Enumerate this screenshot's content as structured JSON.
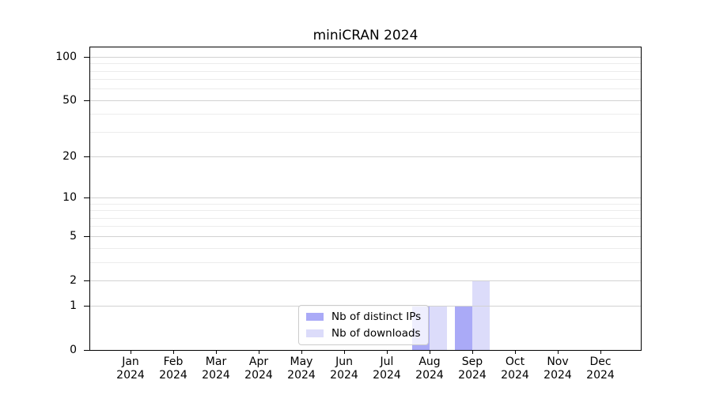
{
  "figure": {
    "background": "#ffffff"
  },
  "chart_data": {
    "type": "bar",
    "title": "miniCRAN 2024",
    "xlabel": "",
    "ylabel": "",
    "categories": [
      {
        "label": "Jan",
        "sublabel": "2024"
      },
      {
        "label": "Feb",
        "sublabel": "2024"
      },
      {
        "label": "Mar",
        "sublabel": "2024"
      },
      {
        "label": "Apr",
        "sublabel": "2024"
      },
      {
        "label": "May",
        "sublabel": "2024"
      },
      {
        "label": "Jun",
        "sublabel": "2024"
      },
      {
        "label": "Jul",
        "sublabel": "2024"
      },
      {
        "label": "Aug",
        "sublabel": "2024"
      },
      {
        "label": "Sep",
        "sublabel": "2024"
      },
      {
        "label": "Oct",
        "sublabel": "2024"
      },
      {
        "label": "Nov",
        "sublabel": "2024"
      },
      {
        "label": "Dec",
        "sublabel": "2024"
      }
    ],
    "series": [
      {
        "name": "Nb of distinct IPs",
        "color": "#aaaaf7",
        "values": [
          0,
          0,
          0,
          0,
          0,
          0,
          0,
          1,
          1,
          0,
          0,
          0
        ]
      },
      {
        "name": "Nb of downloads",
        "color": "#dcdcfa",
        "values": [
          0,
          0,
          0,
          0,
          0,
          0,
          0,
          1,
          2,
          0,
          0,
          0
        ]
      }
    ],
    "y_axis": {
      "scale": "log1p",
      "major_ticks": [
        0,
        1,
        2,
        5,
        10,
        20,
        50,
        100
      ],
      "minor_gridlines": [
        3,
        4,
        6,
        7,
        8,
        9,
        30,
        40,
        60,
        70,
        80,
        90
      ],
      "max": 116
    },
    "grid": "both",
    "legend": {
      "position": "lower center"
    },
    "colors": {
      "axis": "#000000",
      "grid_major": "#d2d2d2",
      "grid_minor": "#ececec",
      "bar_distinct_ips": "#aaaaf7",
      "bar_downloads": "#dcdcfa"
    }
  }
}
